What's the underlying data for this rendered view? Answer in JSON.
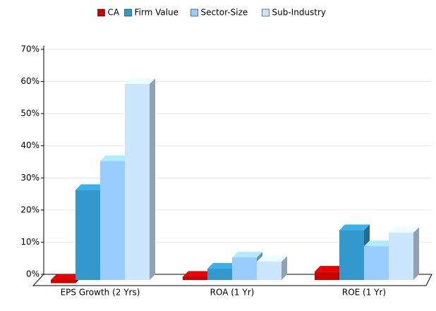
{
  "chart_data": {
    "type": "bar3d",
    "categories": [
      "EPS Growth (2 Yrs)",
      "ROA (1 Yr)",
      "ROE (1 Yr)"
    ],
    "series": [
      {
        "name": "CA",
        "color": "#cc0000",
        "values": [
          -1,
          1,
          2.6
        ]
      },
      {
        "name": "Firm Value",
        "color": "#3399cc",
        "values": [
          28,
          3.5,
          15.5
        ]
      },
      {
        "name": "Sector-Size",
        "color": "#99ccff",
        "values": [
          37,
          7,
          10.5
        ]
      },
      {
        "name": "Sub-Industry",
        "color": "#cce6ff",
        "values": [
          61,
          5.7,
          14.7
        ]
      }
    ],
    "ylim": [
      0,
      70
    ],
    "yticks": [
      {
        "value": 0,
        "label": "0%"
      },
      {
        "value": 10,
        "label": "10%"
      },
      {
        "value": 20,
        "label": "20%"
      },
      {
        "value": 30,
        "label": "30%"
      },
      {
        "value": 40,
        "label": "40%"
      },
      {
        "value": 50,
        "label": "50%"
      },
      {
        "value": 60,
        "label": "60%"
      },
      {
        "value": 70,
        "label": "70%"
      }
    ],
    "grid": true,
    "legend": "top"
  }
}
